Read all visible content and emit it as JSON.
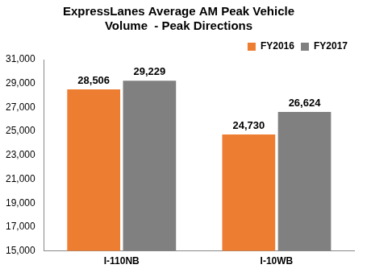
{
  "chart_data": {
    "type": "bar",
    "title": "ExpressLanes Average AM Peak Vehicle Volume  - Peak Directions",
    "categories": [
      "I-110NB",
      "I-10WB"
    ],
    "series": [
      {
        "name": "FY2016",
        "color": "#ED7D31",
        "values": [
          28506,
          24730
        ],
        "value_labels": [
          "28,506",
          "24,730"
        ]
      },
      {
        "name": "FY2017",
        "color": "#808080",
        "values": [
          29229,
          26624
        ],
        "value_labels": [
          "29,229",
          "26,624"
        ]
      }
    ],
    "ylim": [
      15000,
      31000
    ],
    "yticks": [
      {
        "value": 15000,
        "label": "15,000"
      },
      {
        "value": 17000,
        "label": "17,000"
      },
      {
        "value": 19000,
        "label": "19,000"
      },
      {
        "value": 21000,
        "label": "21,000"
      },
      {
        "value": 23000,
        "label": "23,000"
      },
      {
        "value": 25000,
        "label": "25,000"
      },
      {
        "value": 27000,
        "label": "27,000"
      },
      {
        "value": 29000,
        "label": "29,000"
      },
      {
        "value": 31000,
        "label": "31,000"
      }
    ],
    "grid": false,
    "legend": "upper right",
    "data_labels": true
  }
}
